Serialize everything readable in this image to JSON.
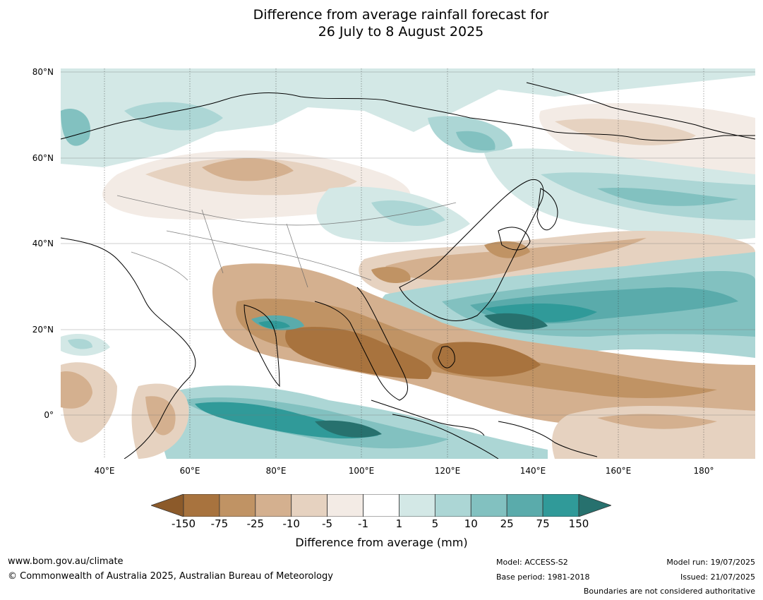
{
  "title": {
    "line1": "Difference from average rainfall forecast for",
    "line2": "26 July to 8 August 2025"
  },
  "map": {
    "lat_labels": [
      "80°N",
      "60°N",
      "40°N",
      "20°N",
      "0°"
    ],
    "lon_labels": [
      "40°E",
      "60°E",
      "80°E",
      "100°E",
      "120°E",
      "140°E",
      "160°E",
      "180°"
    ]
  },
  "colorbar": {
    "ticks": [
      "-150",
      "-75",
      "-25",
      "-10",
      "-5",
      "-1",
      "1",
      "5",
      "10",
      "25",
      "75",
      "150"
    ],
    "colors": [
      "#8c5a2a",
      "#a8733e",
      "#c09364",
      "#d4b08f",
      "#e6d2c0",
      "#f3ebe5",
      "#ffffff",
      "#d3e8e6",
      "#acd6d5",
      "#82c1c0",
      "#5aabab",
      "#309a99",
      "#27716e"
    ],
    "label": "Difference from average (mm)"
  },
  "footer": {
    "website": "www.bom.gov.au/climate",
    "copyright": "© Commonwealth of Australia 2025, Australian Bureau of Meteorology",
    "model": "Model: ACCESS-S2",
    "base_period": "Base period: 1981-2018",
    "model_run": "Model run: 19/07/2025",
    "issued": "Issued: 21/07/2025",
    "disclaimer": "Boundaries are not considered authoritative"
  }
}
